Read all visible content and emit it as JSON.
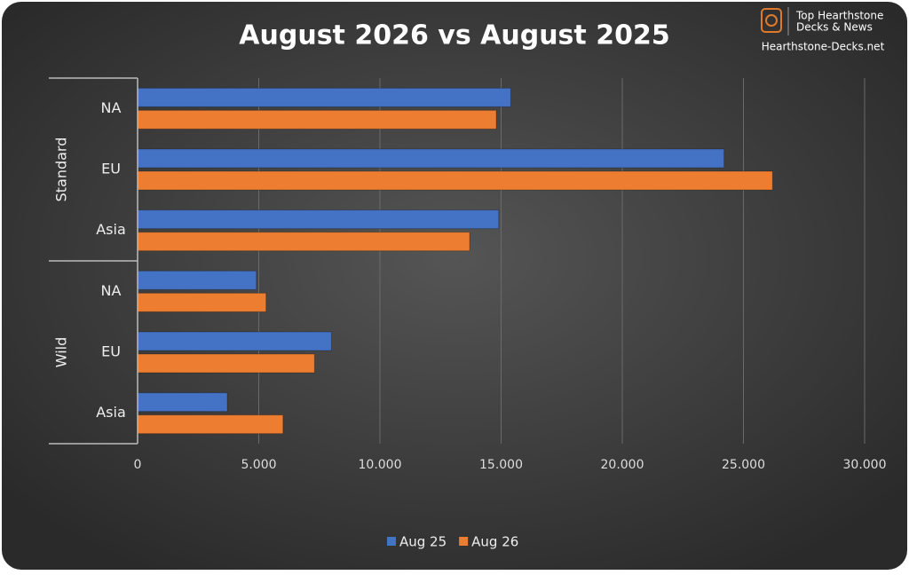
{
  "chart_data": {
    "type": "bar",
    "orientation": "horizontal",
    "title": "August 2026 vs August 2025",
    "groups": [
      {
        "name": "Standard",
        "categories": [
          "NA",
          "EU",
          "Asia"
        ]
      },
      {
        "name": "Wild",
        "categories": [
          "NA",
          "EU",
          "Asia"
        ]
      }
    ],
    "series": [
      {
        "name": "Aug 25",
        "color": "#4472c4",
        "values": [
          15400,
          24200,
          14900,
          4900,
          8000,
          3700
        ]
      },
      {
        "name": "Aug 26",
        "color": "#ed7d31",
        "values": [
          14800,
          26200,
          13700,
          5300,
          7300,
          6000
        ]
      }
    ],
    "xlim": [
      0,
      30000
    ],
    "xticks": [
      0,
      {
        "value": 5000,
        "label": "5.000"
      },
      {
        "value": 10000,
        "label": "10.000"
      },
      {
        "value": 15000,
        "label": "15.000"
      },
      {
        "value": 20000,
        "label": "20.000"
      },
      {
        "value": 25000,
        "label": "25.000"
      },
      {
        "value": 30000,
        "label": "30.000"
      }
    ],
    "grid": true,
    "legend": "bottom",
    "logo": [
      "Top Hearthstone",
      "Decks & News",
      "Hearthstone-Decks.net"
    ]
  }
}
